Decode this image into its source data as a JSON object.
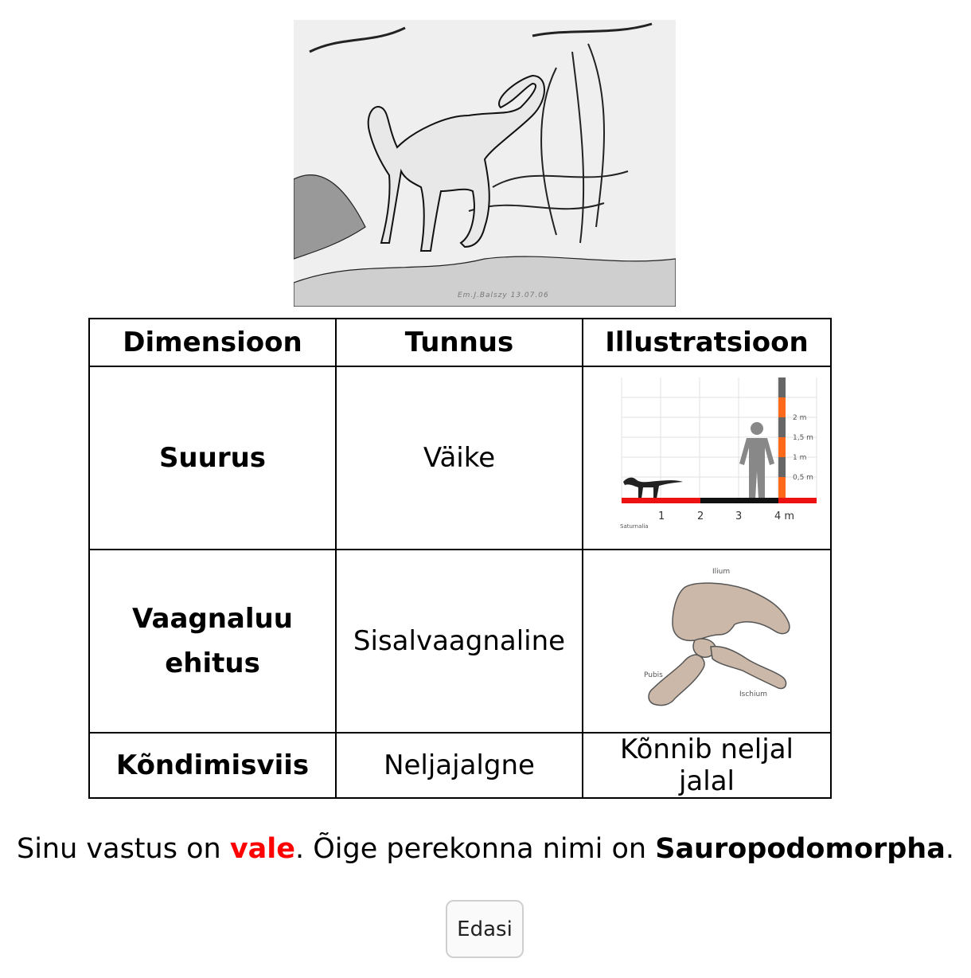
{
  "illustration": {
    "signature": "Em.J.Balszy 13.07.06"
  },
  "table": {
    "headers": [
      "Dimensioon",
      "Tunnus",
      "Illustratsioon"
    ],
    "rows": [
      {
        "dimension": "Suurus",
        "trait": "Väike"
      },
      {
        "dimension": "Vaagnaluu ehitus",
        "trait": "Sisalvaagnaline"
      },
      {
        "dimension": "Kõndimisviis",
        "trait": "Neljajalgne",
        "illustration_text": "Kõnnib neljal jalal"
      }
    ]
  },
  "size_chart": {
    "scale_labels": [
      "2 m",
      "1,5 m",
      "1 m",
      "0,5 m"
    ],
    "axis_labels": [
      "1",
      "2",
      "3",
      "4 m"
    ],
    "caption": "Saturnalia",
    "colors": {
      "ground_red": "#ee1111",
      "ground_black": "#111111",
      "bar_orange": "#ff6a1a",
      "silhouette": "#888888"
    }
  },
  "pelvis": {
    "labels": {
      "ilium": "Ilium",
      "pubis": "Pubis",
      "ischium": "Ischium"
    },
    "bone_color": "#cbb8a8"
  },
  "answer": {
    "prefix": "Sinu vastus on ",
    "verdict": "vale",
    "middle": ". Õige perekonna nimi on ",
    "correct_name": "Sauropodomorpha",
    "suffix": ".",
    "verdict_color": "#ff0000"
  },
  "next_button": {
    "label": "Edasi"
  }
}
